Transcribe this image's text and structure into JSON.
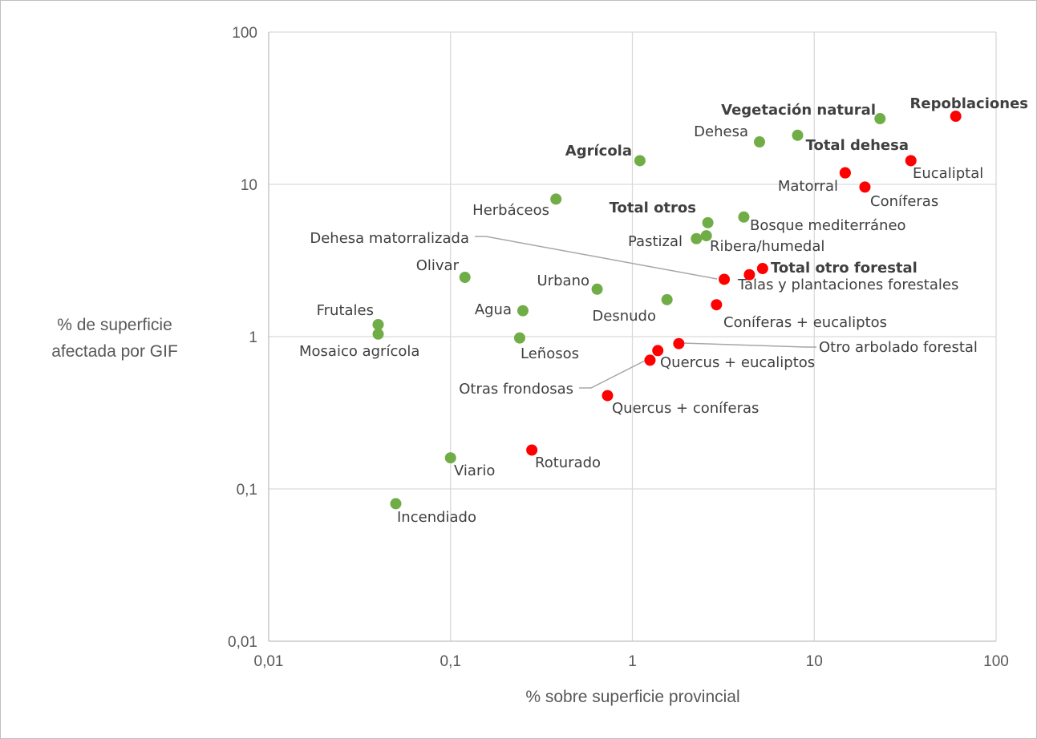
{
  "chart_data": {
    "type": "scatter",
    "title": "",
    "xlabel": "% sobre superficie provincial",
    "ylabel": [
      "% de superficie",
      "afectada por GIF"
    ],
    "xscale": "log",
    "yscale": "log",
    "xlim": [
      0.01,
      100
    ],
    "ylim": [
      0.01,
      100
    ],
    "xticks": [
      0.01,
      0.1,
      1,
      10,
      100
    ],
    "xtick_labels": [
      "0,01",
      "0,1",
      "1",
      "10",
      "100"
    ],
    "yticks": [
      0.01,
      0.1,
      1,
      10,
      100
    ],
    "ytick_labels": [
      "0,01",
      "0,1",
      "1",
      "10",
      "100"
    ],
    "grid": true,
    "legend": "none",
    "colors": {
      "green": "#70ad47",
      "red": "#ff0000"
    },
    "points": [
      {
        "label": "Vegetación natural",
        "x": 23,
        "y": 27,
        "color": "green",
        "bold": true
      },
      {
        "label": "Dehesa",
        "x": 5.0,
        "y": 19,
        "color": "green",
        "bold": false
      },
      {
        "label": "",
        "x": 8.1,
        "y": 21,
        "color": "green",
        "bold": false
      },
      {
        "label": "Agrícola",
        "x": 1.1,
        "y": 14.3,
        "color": "green",
        "bold": true
      },
      {
        "label": "Herbáceos",
        "x": 0.38,
        "y": 8.0,
        "color": "green",
        "bold": false
      },
      {
        "label": "Total otros",
        "x": 2.6,
        "y": 5.6,
        "color": "green",
        "bold": true
      },
      {
        "label": "Bosque mediterráneo",
        "x": 4.1,
        "y": 6.1,
        "color": "green",
        "bold": false
      },
      {
        "label": "Pastizal",
        "x": 2.25,
        "y": 4.4,
        "color": "green",
        "bold": false
      },
      {
        "label": "Ribera/humedal",
        "x": 2.55,
        "y": 4.6,
        "color": "green",
        "bold": false
      },
      {
        "label": "Olivar",
        "x": 0.12,
        "y": 2.45,
        "color": "green",
        "bold": false
      },
      {
        "label": "Urbano",
        "x": 0.64,
        "y": 2.05,
        "color": "green",
        "bold": false
      },
      {
        "label": "Desnudo",
        "x": 1.55,
        "y": 1.75,
        "color": "green",
        "bold": false
      },
      {
        "label": "Agua",
        "x": 0.25,
        "y": 1.48,
        "color": "green",
        "bold": false
      },
      {
        "label": "Frutales",
        "x": 0.04,
        "y": 1.2,
        "color": "green",
        "bold": false
      },
      {
        "label": "Mosaico agrícola",
        "x": 0.04,
        "y": 1.04,
        "color": "green",
        "bold": false
      },
      {
        "label": "Leñosos",
        "x": 0.24,
        "y": 0.98,
        "color": "green",
        "bold": false
      },
      {
        "label": "Viario",
        "x": 0.1,
        "y": 0.16,
        "color": "green",
        "bold": false
      },
      {
        "label": "Incendiado",
        "x": 0.05,
        "y": 0.08,
        "color": "green",
        "bold": false
      },
      {
        "label": "Repoblaciones",
        "x": 60,
        "y": 28,
        "color": "red",
        "bold": true
      },
      {
        "label": "Total dehesa",
        "x": 14.8,
        "y": 11.9,
        "color": "red",
        "bold": true
      },
      {
        "label": "Eucaliptal",
        "x": 34,
        "y": 14.3,
        "color": "red",
        "bold": false
      },
      {
        "label": "Matorral",
        "x": 14.8,
        "y": 11.9,
        "color": "red",
        "bold": false
      },
      {
        "label": "Coníferas",
        "x": 19,
        "y": 9.6,
        "color": "red",
        "bold": false
      },
      {
        "label": "Total otro forestal",
        "x": 5.2,
        "y": 2.8,
        "color": "red",
        "bold": true
      },
      {
        "label": "Talas y plantaciones forestales",
        "x": 4.4,
        "y": 2.55,
        "color": "red",
        "bold": false
      },
      {
        "label": "Dehesa matorralizada",
        "x": 3.2,
        "y": 2.38,
        "color": "red",
        "bold": false
      },
      {
        "label": "Coníferas + eucaliptos",
        "x": 2.9,
        "y": 1.62,
        "color": "red",
        "bold": false
      },
      {
        "label": "Otro arbolado forestal",
        "x": 1.8,
        "y": 0.9,
        "color": "red",
        "bold": false
      },
      {
        "label": "Quercus + eucaliptos",
        "x": 1.38,
        "y": 0.81,
        "color": "red",
        "bold": false
      },
      {
        "label": "Otras frondosas",
        "x": 1.25,
        "y": 0.7,
        "color": "red",
        "bold": false
      },
      {
        "label": "Quercus + coníferas",
        "x": 0.73,
        "y": 0.41,
        "color": "red",
        "bold": false
      },
      {
        "label": "Roturado",
        "x": 0.28,
        "y": 0.18,
        "color": "red",
        "bold": false
      }
    ]
  }
}
